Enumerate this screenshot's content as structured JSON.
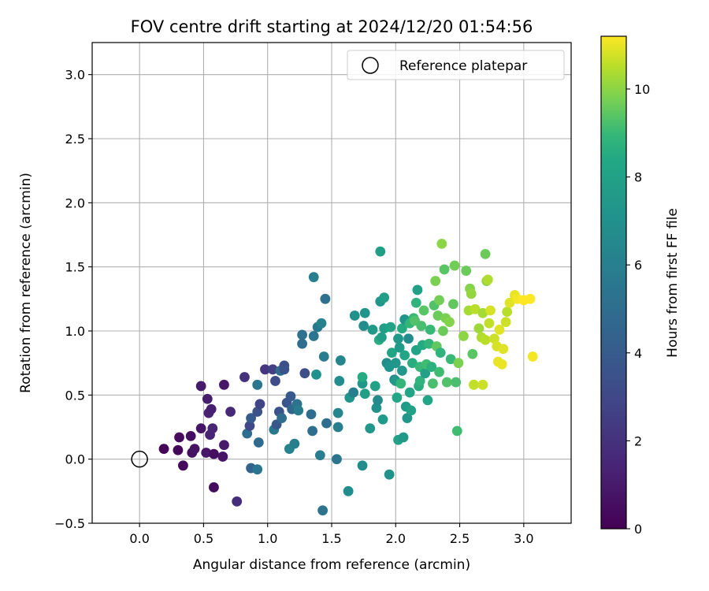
{
  "chart_data": {
    "type": "scatter",
    "title": "FOV centre drift starting at 2024/12/20 01:54:56",
    "xlabel": "Angular distance from reference (arcmin)",
    "ylabel": "Rotation from reference (arcmin)",
    "xlim": [
      -0.37,
      3.37
    ],
    "ylim": [
      -0.5,
      3.25
    ],
    "xticks": [
      0.0,
      0.5,
      1.0,
      1.5,
      2.0,
      2.5,
      3.0
    ],
    "xtick_labels": [
      "0.0",
      "0.5",
      "1.0",
      "1.5",
      "2.0",
      "2.5",
      "3.0"
    ],
    "yticks": [
      -0.5,
      0.0,
      0.5,
      1.0,
      1.5,
      2.0,
      2.5,
      3.0
    ],
    "ytick_labels": [
      "−0.5",
      "0.0",
      "0.5",
      "1.0",
      "1.5",
      "2.0",
      "2.5",
      "3.0"
    ],
    "grid": true,
    "legend": {
      "placement": "upper-right",
      "entries": [
        "Reference platepar"
      ]
    },
    "colorbar": {
      "label": "Hours from first FF file",
      "colormap": "viridis",
      "range": [
        0,
        11.2
      ],
      "ticks": [
        0,
        2,
        4,
        6,
        8,
        10
      ],
      "tick_labels": [
        "0",
        "2",
        "4",
        "6",
        "8",
        "10"
      ]
    },
    "reference_point": {
      "x": 0.0,
      "y": 0.0,
      "marker": "open-circle"
    },
    "point_fields": [
      "x",
      "y",
      "hours"
    ],
    "points": [
      [
        0.19,
        0.08,
        0.2
      ],
      [
        0.3,
        0.07,
        0.3
      ],
      [
        0.31,
        0.17,
        0.4
      ],
      [
        0.34,
        -0.05,
        0.3
      ],
      [
        0.4,
        0.18,
        0.5
      ],
      [
        0.41,
        0.05,
        0.6
      ],
      [
        0.43,
        0.08,
        0.7
      ],
      [
        0.48,
        0.24,
        0.8
      ],
      [
        0.48,
        0.57,
        1.0
      ],
      [
        0.52,
        0.05,
        0.9
      ],
      [
        0.53,
        0.47,
        1.1
      ],
      [
        0.54,
        0.36,
        1.3
      ],
      [
        0.55,
        0.19,
        1.4
      ],
      [
        0.56,
        0.39,
        1.2
      ],
      [
        0.57,
        0.24,
        1.5
      ],
      [
        0.58,
        0.04,
        0.5
      ],
      [
        0.58,
        -0.22,
        0.4
      ],
      [
        0.65,
        0.02,
        0.8
      ],
      [
        0.66,
        0.58,
        0.9
      ],
      [
        0.66,
        0.11,
        1.0
      ],
      [
        0.71,
        0.37,
        1.6
      ],
      [
        0.76,
        -0.33,
        1.8
      ],
      [
        0.82,
        0.64,
        2.0
      ],
      [
        0.84,
        0.2,
        5.0
      ],
      [
        0.86,
        0.26,
        3.0
      ],
      [
        0.87,
        -0.07,
        4.5
      ],
      [
        0.87,
        0.32,
        4.0
      ],
      [
        0.92,
        -0.08,
        5.5
      ],
      [
        0.92,
        0.37,
        3.5
      ],
      [
        0.92,
        0.58,
        5.5
      ],
      [
        0.93,
        0.13,
        4.8
      ],
      [
        0.94,
        0.43,
        2.8
      ],
      [
        0.98,
        0.7,
        2.2
      ],
      [
        1.04,
        0.7,
        2.6
      ],
      [
        1.05,
        0.23,
        5.6
      ],
      [
        1.06,
        0.61,
        3.2
      ],
      [
        1.07,
        0.27,
        3.8
      ],
      [
        1.09,
        0.37,
        3.5
      ],
      [
        1.1,
        0.69,
        5.0
      ],
      [
        1.11,
        0.32,
        5.0
      ],
      [
        1.13,
        0.73,
        3.4
      ],
      [
        1.13,
        0.7,
        3.6
      ],
      [
        1.15,
        0.44,
        3.7
      ],
      [
        1.17,
        0.08,
        6.2
      ],
      [
        1.18,
        0.49,
        3.9
      ],
      [
        1.19,
        0.39,
        4.6
      ],
      [
        1.21,
        0.12,
        6.0
      ],
      [
        1.23,
        0.43,
        5.4
      ],
      [
        1.24,
        0.38,
        5.8
      ],
      [
        1.27,
        0.97,
        5.2
      ],
      [
        1.27,
        0.9,
        5.0
      ],
      [
        1.29,
        0.67,
        3.3
      ],
      [
        1.34,
        0.35,
        4.9
      ],
      [
        1.35,
        0.22,
        5.1
      ],
      [
        1.36,
        0.96,
        5.5
      ],
      [
        1.36,
        1.42,
        6.0
      ],
      [
        1.38,
        0.66,
        7.0
      ],
      [
        1.39,
        1.03,
        5.6
      ],
      [
        1.41,
        0.03,
        5.9
      ],
      [
        1.42,
        1.06,
        6.2
      ],
      [
        1.43,
        -0.4,
        5.4
      ],
      [
        1.44,
        0.8,
        5.8
      ],
      [
        1.45,
        1.25,
        5.2
      ],
      [
        1.46,
        0.28,
        5.0
      ],
      [
        1.54,
        0.0,
        5.5
      ],
      [
        1.55,
        0.36,
        6.3
      ],
      [
        1.55,
        0.25,
        5.9
      ],
      [
        1.56,
        0.61,
        6.7
      ],
      [
        1.57,
        0.77,
        6.4
      ],
      [
        1.63,
        -0.25,
        6.8
      ],
      [
        1.64,
        0.48,
        7.2
      ],
      [
        1.67,
        0.52,
        6.0
      ],
      [
        1.68,
        1.12,
        7.0
      ],
      [
        1.74,
        -0.05,
        6.7
      ],
      [
        1.74,
        0.59,
        7.4
      ],
      [
        1.74,
        0.64,
        8.5
      ],
      [
        1.75,
        1.04,
        6.7
      ],
      [
        1.76,
        1.14,
        7.2
      ],
      [
        1.76,
        0.51,
        7.8
      ],
      [
        1.8,
        0.24,
        7.3
      ],
      [
        1.82,
        1.01,
        7.5
      ],
      [
        1.84,
        0.57,
        8.0
      ],
      [
        1.85,
        0.4,
        7.0
      ],
      [
        1.86,
        0.46,
        6.6
      ],
      [
        1.87,
        0.93,
        8.6
      ],
      [
        1.88,
        1.62,
        7.8
      ],
      [
        1.88,
        1.23,
        7.4
      ],
      [
        1.89,
        0.95,
        7.8
      ],
      [
        1.9,
        0.31,
        7.6
      ],
      [
        1.91,
        1.02,
        7.9
      ],
      [
        1.91,
        1.26,
        7.7
      ],
      [
        1.93,
        0.75,
        6.8
      ],
      [
        1.95,
        -0.12,
        7.1
      ],
      [
        1.95,
        0.72,
        7.2
      ],
      [
        1.96,
        1.03,
        8.1
      ],
      [
        1.97,
        0.83,
        8.2
      ],
      [
        1.99,
        0.62,
        6.6
      ],
      [
        2.0,
        0.75,
        7.3
      ],
      [
        2.0,
        0.61,
        7.5
      ],
      [
        2.01,
        0.48,
        8.3
      ],
      [
        2.02,
        0.15,
        8.0
      ],
      [
        2.02,
        0.94,
        7.4
      ],
      [
        2.03,
        0.87,
        7.6
      ],
      [
        2.04,
        0.59,
        8.9
      ],
      [
        2.05,
        0.69,
        7.4
      ],
      [
        2.05,
        1.02,
        8.5
      ],
      [
        2.06,
        0.17,
        7.5
      ],
      [
        2.07,
        0.81,
        8.2
      ],
      [
        2.07,
        1.09,
        7.2
      ],
      [
        2.08,
        0.41,
        7.6
      ],
      [
        2.09,
        0.32,
        7.3
      ],
      [
        2.1,
        0.94,
        6.8
      ],
      [
        2.11,
        1.06,
        8.9
      ],
      [
        2.11,
        0.52,
        8.2
      ],
      [
        2.12,
        0.38,
        8.0
      ],
      [
        2.13,
        0.75,
        8.6
      ],
      [
        2.14,
        1.1,
        9.0
      ],
      [
        2.15,
        1.08,
        9.3
      ],
      [
        2.16,
        1.22,
        8.8
      ],
      [
        2.16,
        0.85,
        8.1
      ],
      [
        2.17,
        1.32,
        7.9
      ],
      [
        2.18,
        0.57,
        8.6
      ],
      [
        2.19,
        0.72,
        9.0
      ],
      [
        2.19,
        0.61,
        8.8
      ],
      [
        2.2,
        1.04,
        9.2
      ],
      [
        2.21,
        0.89,
        8.5
      ],
      [
        2.22,
        1.16,
        9.4
      ],
      [
        2.23,
        0.67,
        8.0
      ],
      [
        2.24,
        0.74,
        9.1
      ],
      [
        2.25,
        0.46,
        8.2
      ],
      [
        2.26,
        0.9,
        8.9
      ],
      [
        2.27,
        1.01,
        9.0
      ],
      [
        2.28,
        0.72,
        8.7
      ],
      [
        2.29,
        0.59,
        9.2
      ],
      [
        2.3,
        1.2,
        9.3
      ],
      [
        2.31,
        1.39,
        9.8
      ],
      [
        2.32,
        0.88,
        9.5
      ],
      [
        2.33,
        1.12,
        9.6
      ],
      [
        2.34,
        1.24,
        9.7
      ],
      [
        2.34,
        0.68,
        9.1
      ],
      [
        2.35,
        0.83,
        8.8
      ],
      [
        2.36,
        1.68,
        10.0
      ],
      [
        2.37,
        1.0,
        9.6
      ],
      [
        2.38,
        1.48,
        9.4
      ],
      [
        2.39,
        1.1,
        9.8
      ],
      [
        2.4,
        0.6,
        9.3
      ],
      [
        2.42,
        1.07,
        9.9
      ],
      [
        2.43,
        0.78,
        9.0
      ],
      [
        2.45,
        1.21,
        9.5
      ],
      [
        2.46,
        1.51,
        9.7
      ],
      [
        2.47,
        0.6,
        9.2
      ],
      [
        2.48,
        0.22,
        9.1
      ],
      [
        2.49,
        0.75,
        9.8
      ],
      [
        2.53,
        0.96,
        10.0
      ],
      [
        2.55,
        1.47,
        9.6
      ],
      [
        2.57,
        1.16,
        10.3
      ],
      [
        2.58,
        1.33,
        9.9
      ],
      [
        2.59,
        1.29,
        10.1
      ],
      [
        2.6,
        0.82,
        9.4
      ],
      [
        2.61,
        0.58,
        10.6
      ],
      [
        2.62,
        1.17,
        10.5
      ],
      [
        2.65,
        1.02,
        10.2
      ],
      [
        2.67,
        0.95,
        10.4
      ],
      [
        2.68,
        1.14,
        10.3
      ],
      [
        2.68,
        0.58,
        10.7
      ],
      [
        2.7,
        1.6,
        9.6
      ],
      [
        2.7,
        0.93,
        10.5
      ],
      [
        2.71,
        1.39,
        10.1
      ],
      [
        2.72,
        1.4,
        10.4
      ],
      [
        2.73,
        1.06,
        10.6
      ],
      [
        2.74,
        1.16,
        10.8
      ],
      [
        2.77,
        0.94,
        10.7
      ],
      [
        2.79,
        0.88,
        10.8
      ],
      [
        2.8,
        0.76,
        11.0
      ],
      [
        2.81,
        1.01,
        10.9
      ],
      [
        2.83,
        0.74,
        11.0
      ],
      [
        2.84,
        0.86,
        10.9
      ],
      [
        2.86,
        1.07,
        10.7
      ],
      [
        2.87,
        1.15,
        10.5
      ],
      [
        2.89,
        1.22,
        10.9
      ],
      [
        2.93,
        1.28,
        11.0
      ],
      [
        2.95,
        1.25,
        11.1
      ],
      [
        3.0,
        1.24,
        11.2
      ],
      [
        3.05,
        1.25,
        11.2
      ],
      [
        3.07,
        0.8,
        11.1
      ]
    ]
  }
}
